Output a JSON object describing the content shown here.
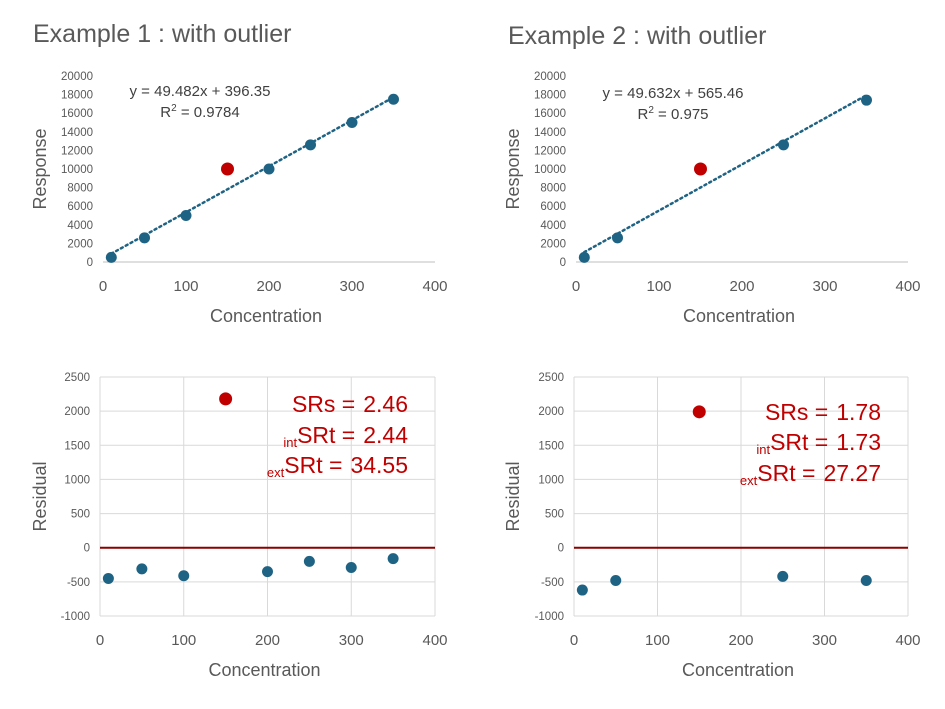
{
  "titles": [
    "Example 1 : with outlier",
    "Example 2 : with outlier"
  ],
  "colors": {
    "point": "#1f6384",
    "outlier": "#c00000",
    "grid": "#d9d9d9",
    "residual_zero": "#8b0000"
  },
  "chart_data": [
    {
      "id": "ex1-calibration",
      "type": "scatter",
      "xlabel": "Concentration",
      "ylabel": "Response",
      "xlim": [
        0,
        400
      ],
      "ylim": [
        0,
        20000
      ],
      "xticks": [
        0,
        100,
        200,
        300,
        400
      ],
      "yticks": [
        0,
        2000,
        4000,
        6000,
        8000,
        10000,
        12000,
        14000,
        16000,
        18000,
        20000
      ],
      "points": [
        [
          10,
          500
        ],
        [
          50,
          2600
        ],
        [
          100,
          5000
        ],
        [
          200,
          10000
        ],
        [
          250,
          12600
        ],
        [
          300,
          15000
        ],
        [
          350,
          17500
        ]
      ],
      "outliers": [
        [
          150,
          10000
        ]
      ],
      "trendline": {
        "slope": 49.482,
        "intercept": 396.35,
        "x_range": [
          10,
          350
        ]
      },
      "equation": "y = 49.482x + 396.35",
      "r2_prefix": "R",
      "r2_sup": "2",
      "r2_value": " = 0.9784",
      "grid": false
    },
    {
      "id": "ex2-calibration",
      "type": "scatter",
      "xlabel": "Concentration",
      "ylabel": "Response",
      "xlim": [
        0,
        400
      ],
      "ylim": [
        0,
        20000
      ],
      "xticks": [
        0,
        100,
        200,
        300,
        400
      ],
      "yticks": [
        0,
        2000,
        4000,
        6000,
        8000,
        10000,
        12000,
        14000,
        16000,
        18000,
        20000
      ],
      "points": [
        [
          10,
          500
        ],
        [
          50,
          2600
        ],
        [
          250,
          12600
        ],
        [
          350,
          17400
        ]
      ],
      "outliers": [
        [
          150,
          10000
        ]
      ],
      "trendline": {
        "slope": 49.632,
        "intercept": 565.46,
        "x_range": [
          10,
          350
        ]
      },
      "equation": "y = 49.632x + 565.46",
      "r2_prefix": "R",
      "r2_sup": "2",
      "r2_value": " = 0.975",
      "grid": false
    },
    {
      "id": "ex1-residual",
      "type": "scatter",
      "xlabel": "Concentration",
      "ylabel": "Residual",
      "xlim": [
        0,
        400
      ],
      "ylim": [
        -1000,
        2500
      ],
      "xticks": [
        0,
        100,
        200,
        300,
        400
      ],
      "yticks": [
        -1000,
        -500,
        0,
        500,
        1000,
        1500,
        2000,
        2500
      ],
      "points": [
        [
          10,
          -450
        ],
        [
          50,
          -310
        ],
        [
          100,
          -410
        ],
        [
          200,
          -350
        ],
        [
          250,
          -200
        ],
        [
          300,
          -290
        ],
        [
          350,
          -160
        ]
      ],
      "outliers": [
        [
          150,
          2180
        ]
      ],
      "zero_line": 0,
      "grid": true,
      "stats": [
        {
          "sub": "",
          "label": "SRs =",
          "value": "2.46"
        },
        {
          "sub": "int",
          "label": "SRt =",
          "value": "2.44"
        },
        {
          "sub": "ext",
          "label": "SRt =",
          "value": "34.55"
        }
      ]
    },
    {
      "id": "ex2-residual",
      "type": "scatter",
      "xlabel": "Concentration",
      "ylabel": "Residual",
      "xlim": [
        0,
        400
      ],
      "ylim": [
        -1000,
        2500
      ],
      "xticks": [
        0,
        100,
        200,
        300,
        400
      ],
      "yticks": [
        -1000,
        -500,
        0,
        500,
        1000,
        1500,
        2000,
        2500
      ],
      "points": [
        [
          10,
          -620
        ],
        [
          50,
          -480
        ],
        [
          250,
          -420
        ],
        [
          350,
          -480
        ]
      ],
      "outliers": [
        [
          150,
          1990
        ]
      ],
      "zero_line": 0,
      "grid": true,
      "stats": [
        {
          "sub": "",
          "label": "SRs =",
          "value": "1.78"
        },
        {
          "sub": "int",
          "label": "SRt =",
          "value": "1.73"
        },
        {
          "sub": "ext",
          "label": "SRt =",
          "value": "27.27"
        }
      ]
    }
  ]
}
